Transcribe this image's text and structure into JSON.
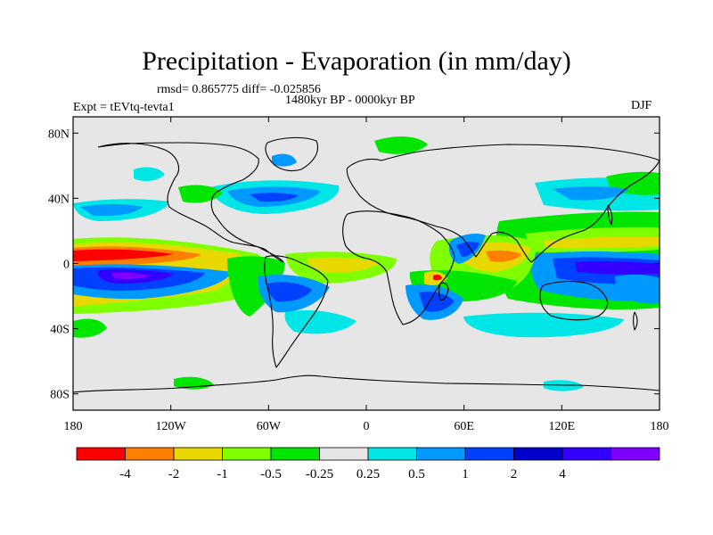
{
  "title": "Precipitation - Evaporation (in mm/day)",
  "stats": "rmsd= 0.865775 diff= -0.025856",
  "period": "1480kyr BP - 0000kyr BP",
  "experiment": "Expt = tEVtq-tevta1",
  "season": "DJF",
  "map": {
    "lat_ticks": [
      "80N",
      "40N",
      "0",
      "40S",
      "80S"
    ],
    "lat_values": [
      80,
      40,
      0,
      -40,
      -80
    ],
    "lon_ticks": [
      "180",
      "120W",
      "60W",
      "0",
      "60E",
      "120E",
      "180"
    ],
    "lon_values": [
      -180,
      -120,
      -60,
      0,
      60,
      120,
      180
    ],
    "lon_range": [
      -180,
      180
    ],
    "lat_range": [
      -90,
      90
    ],
    "background_color": "#e6e6e6"
  },
  "colorbar": {
    "colors": [
      "#ff0000",
      "#ff8000",
      "#e6d800",
      "#80ff00",
      "#00e600",
      "#e6e6e6",
      "#00e6e6",
      "#0099ff",
      "#0040ff",
      "#0000cc",
      "#3300ff",
      "#8000ff"
    ],
    "labels": [
      "-4",
      "-2",
      "-1",
      "-0.5",
      "-0.25",
      "0.25",
      "0.5",
      "1",
      "2",
      "4"
    ]
  }
}
